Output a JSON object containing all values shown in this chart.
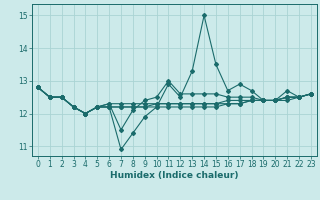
{
  "title": "",
  "xlabel": "Humidex (Indice chaleur)",
  "ylabel": "",
  "bg_color": "#cceaea",
  "grid_color": "#aad4d4",
  "line_color": "#1a6b6b",
  "xlim": [
    -0.5,
    23.5
  ],
  "ylim": [
    10.7,
    15.35
  ],
  "yticks": [
    11,
    12,
    13,
    14,
    15
  ],
  "xticks": [
    0,
    1,
    2,
    3,
    4,
    5,
    6,
    7,
    8,
    9,
    10,
    11,
    12,
    13,
    14,
    15,
    16,
    17,
    18,
    19,
    20,
    21,
    22,
    23
  ],
  "series": [
    [
      12.8,
      12.5,
      12.5,
      12.2,
      12.0,
      12.2,
      12.2,
      10.9,
      11.4,
      11.9,
      12.2,
      12.9,
      12.5,
      13.3,
      15.0,
      13.5,
      12.7,
      12.9,
      12.7,
      12.4,
      12.4,
      12.7,
      12.5,
      12.6
    ],
    [
      12.8,
      12.5,
      12.5,
      12.2,
      12.0,
      12.2,
      12.3,
      11.5,
      12.1,
      12.4,
      12.5,
      13.0,
      12.6,
      12.6,
      12.6,
      12.6,
      12.5,
      12.5,
      12.5,
      12.4,
      12.4,
      12.5,
      12.5,
      12.6
    ],
    [
      12.8,
      12.5,
      12.5,
      12.2,
      12.0,
      12.2,
      12.3,
      12.3,
      12.3,
      12.3,
      12.3,
      12.3,
      12.3,
      12.3,
      12.3,
      12.3,
      12.4,
      12.4,
      12.4,
      12.4,
      12.4,
      12.5,
      12.5,
      12.6
    ],
    [
      12.8,
      12.5,
      12.5,
      12.2,
      12.0,
      12.2,
      12.2,
      12.2,
      12.2,
      12.2,
      12.2,
      12.2,
      12.2,
      12.2,
      12.2,
      12.2,
      12.3,
      12.3,
      12.4,
      12.4,
      12.4,
      12.4,
      12.5,
      12.6
    ],
    [
      12.8,
      12.5,
      12.5,
      12.2,
      12.0,
      12.2,
      12.2,
      12.2,
      12.2,
      12.2,
      12.3,
      12.3,
      12.3,
      12.3,
      12.3,
      12.3,
      12.3,
      12.3,
      12.4,
      12.4,
      12.4,
      12.5,
      12.5,
      12.6
    ]
  ],
  "marker": "D",
  "markersize": 2.0,
  "linewidth": 0.8,
  "xlabel_fontsize": 6.5,
  "tick_fontsize": 5.5
}
